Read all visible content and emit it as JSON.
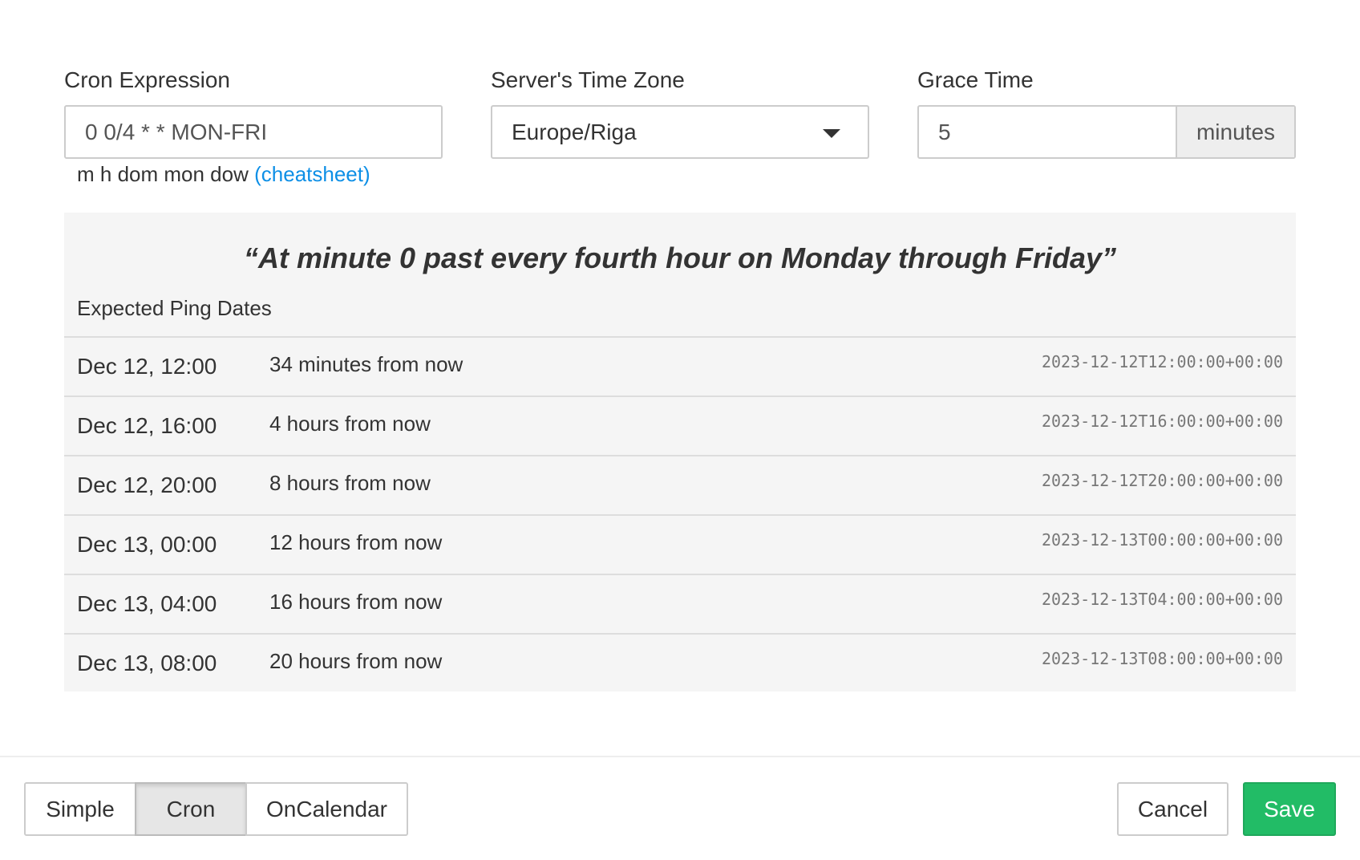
{
  "form": {
    "cron": {
      "label": "Cron Expression",
      "value": "0 0/4 * * MON-FRI",
      "hint": "m h dom mon dow",
      "hint_link": "(cheatsheet)"
    },
    "timezone": {
      "label": "Server's Time Zone",
      "value": "Europe/Riga"
    },
    "grace": {
      "label": "Grace Time",
      "value": "5",
      "unit": "minutes"
    }
  },
  "description": "“At minute 0 past every fourth hour on Monday through Friday”",
  "expected_title": "Expected Ping Dates",
  "pings": [
    {
      "date": "Dec 12, 12:00",
      "relative": "34 minutes from now",
      "iso": "2023-12-12T12:00:00+00:00"
    },
    {
      "date": "Dec 12, 16:00",
      "relative": "4 hours from now",
      "iso": "2023-12-12T16:00:00+00:00"
    },
    {
      "date": "Dec 12, 20:00",
      "relative": "8 hours from now",
      "iso": "2023-12-12T20:00:00+00:00"
    },
    {
      "date": "Dec 13, 00:00",
      "relative": "12 hours from now",
      "iso": "2023-12-13T00:00:00+00:00"
    },
    {
      "date": "Dec 13, 04:00",
      "relative": "16 hours from now",
      "iso": "2023-12-13T04:00:00+00:00"
    },
    {
      "date": "Dec 13, 08:00",
      "relative": "20 hours from now",
      "iso": "2023-12-13T08:00:00+00:00"
    }
  ],
  "footer": {
    "modes": [
      "Simple",
      "Cron",
      "OnCalendar"
    ],
    "active_mode": "Cron",
    "cancel": "Cancel",
    "save": "Save"
  },
  "colors": {
    "accent": "#22bc66",
    "link": "#0d8fe6"
  }
}
